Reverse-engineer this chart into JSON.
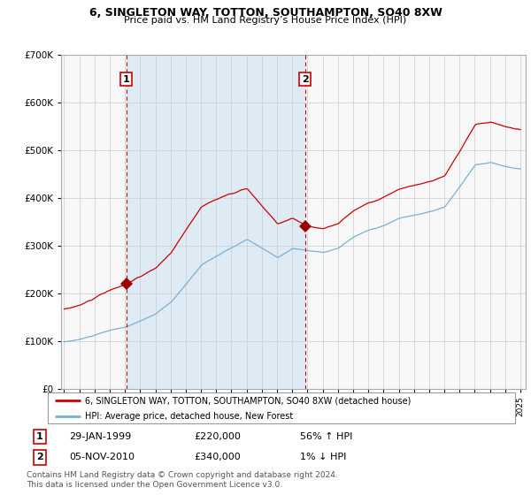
{
  "title": "6, SINGLETON WAY, TOTTON, SOUTHAMPTON, SO40 8XW",
  "subtitle": "Price paid vs. HM Land Registry’s House Price Index (HPI)",
  "legend_line1": "6, SINGLETON WAY, TOTTON, SOUTHAMPTON, SO40 8XW (detached house)",
  "legend_line2": "HPI: Average price, detached house, New Forest",
  "transaction1_label": "1",
  "transaction1_date": "29-JAN-1999",
  "transaction1_price": "£220,000",
  "transaction1_hpi": "56% ↑ HPI",
  "transaction2_label": "2",
  "transaction2_date": "05-NOV-2010",
  "transaction2_price": "£340,000",
  "transaction2_hpi": "1% ↓ HPI",
  "footnote": "Contains HM Land Registry data © Crown copyright and database right 2024.\nThis data is licensed under the Open Government Licence v3.0.",
  "hpi_color": "#7ab0d4",
  "price_color": "#cc0000",
  "shade_color": "#deeaf4",
  "dashed_color": "#cc0000",
  "marker_color": "#990000",
  "background_color": "#ffffff",
  "plot_bg_color": "#f8f8f8",
  "grid_color": "#cccccc",
  "ylim": [
    0,
    700000
  ],
  "yticks": [
    0,
    100000,
    200000,
    300000,
    400000,
    500000,
    600000,
    700000
  ],
  "transaction1_x": 1999.08,
  "transaction1_y": 220000,
  "transaction2_x": 2010.84,
  "transaction2_y": 340000,
  "xmin": 1995.0,
  "xmax": 2025.25
}
